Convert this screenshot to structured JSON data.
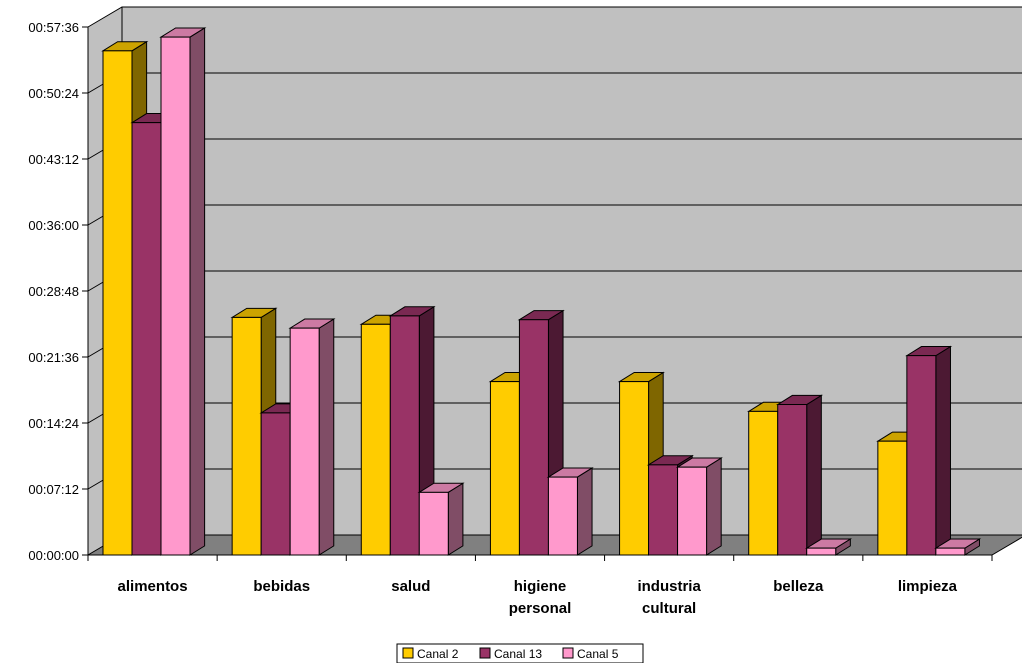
{
  "chart_data": {
    "type": "bar",
    "style": "3d-clustered-column",
    "categories": [
      [
        "alimentos"
      ],
      [
        "bebidas"
      ],
      [
        "salud"
      ],
      [
        "higiene",
        "personal"
      ],
      [
        "industria",
        "cultural"
      ],
      [
        "belleza"
      ],
      [
        "limpieza"
      ]
    ],
    "y_tick_labels": [
      "00:00:00",
      "00:07:12",
      "00:14:24",
      "00:21:36",
      "00:28:48",
      "00:36:00",
      "00:43:12",
      "00:50:24",
      "00:57:36"
    ],
    "ylim": [
      "00:00:00",
      "00:57:36"
    ],
    "grid": true,
    "legend_position": "bottom",
    "series": [
      {
        "name": "Canal 2",
        "color": "#FFCC00",
        "side_color": "#7F6600",
        "top_color": "#CCA300",
        "values": [
          "00:55:00",
          "00:25:55",
          "00:25:10",
          "00:18:55",
          "00:18:55",
          "00:15:40",
          "00:12:25"
        ]
      },
      {
        "name": "Canal 13",
        "color": "#993366",
        "side_color": "#4C1933",
        "top_color": "#7A2952",
        "values": [
          "00:47:10",
          "00:15:30",
          "00:26:05",
          "00:25:40",
          "00:09:50",
          "00:16:25",
          "00:21:45"
        ]
      },
      {
        "name": "Canal 5",
        "color": "#FF99CC",
        "side_color": "#804D66",
        "top_color": "#CC7AA3",
        "values": [
          "00:56:30",
          "00:24:45",
          "00:06:50",
          "00:08:30",
          "00:09:35",
          "00:00:45",
          "00:00:45"
        ]
      }
    ]
  }
}
